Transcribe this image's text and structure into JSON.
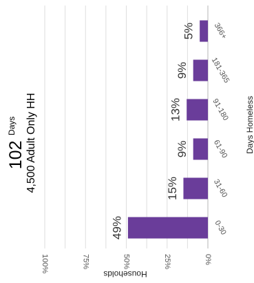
{
  "summary": {
    "value": "102",
    "unit": "Days",
    "subtitle": "4,500 Adult Only HH"
  },
  "chart_data": {
    "type": "bar",
    "orientation": "horizontal",
    "rotated": true,
    "categories": [
      "0-30",
      "31-60",
      "61-90",
      "91-180",
      "181-365",
      "366+"
    ],
    "values": [
      49,
      15,
      9,
      13,
      9,
      5
    ],
    "data_labels": [
      "49%",
      "15%",
      "9%",
      "13%",
      "9%",
      "5%"
    ],
    "xlabel": "Days Homeless",
    "ylabel": "Households",
    "ylim": [
      0,
      100
    ],
    "y_ticks": [
      "0%",
      "25%",
      "50%",
      "75%",
      "100%"
    ],
    "grid": true,
    "bar_color": "#6a3d9a"
  }
}
